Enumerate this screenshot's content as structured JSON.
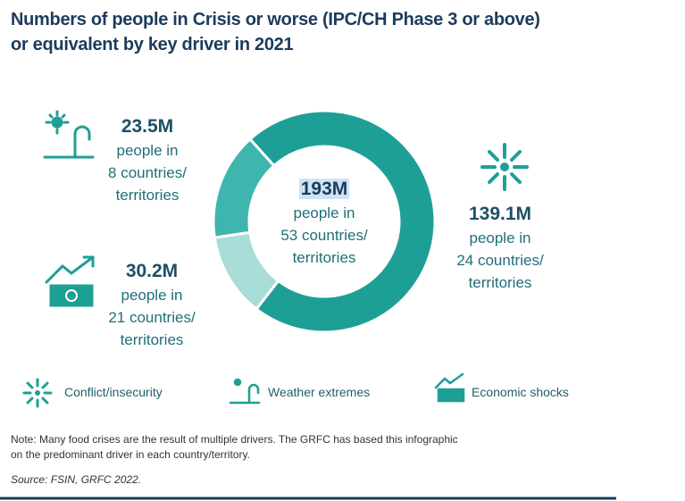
{
  "chart_data": {
    "type": "donut",
    "title_lines": [
      "Numbers of people in Crisis or worse (IPC/CH Phase 3 or above)",
      "or equivalent by key driver in 2021"
    ],
    "categories": [
      "Conflict/insecurity",
      "Weather extremes",
      "Economic shocks"
    ],
    "values": [
      139.1,
      23.5,
      30.2
    ],
    "value_labels": [
      "139.1M",
      "23.5M",
      "30.2M"
    ],
    "detail_lines": [
      [
        "people in",
        "24 countries/",
        "territories"
      ],
      [
        "people in",
        "8 countries/",
        "territories"
      ],
      [
        "people in",
        "21 countries/",
        "territories"
      ]
    ],
    "colors": [
      "#1e9f96",
      "#a9ddd7",
      "#3eb6ad"
    ],
    "center_label": "193M",
    "center_lines": [
      "people in",
      "53 countries/",
      "territories"
    ],
    "note_lines": [
      "Note: Many food crises are the result of multiple drivers. The GRFC has based this infographic",
      "on the predominant driver in each country/territory."
    ],
    "source": "Source: FSIN, GRFC 2022."
  }
}
